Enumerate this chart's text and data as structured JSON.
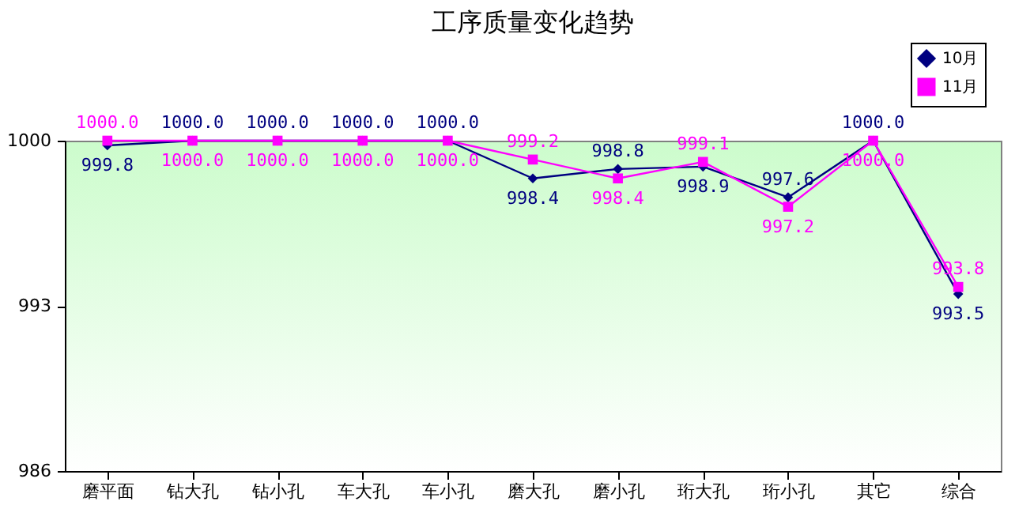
{
  "chart_data": {
    "type": "line",
    "title": "工序质量变化趋势",
    "categories": [
      "磨平面",
      "钻大孔",
      "钻小孔",
      "车大孔",
      "车小孔",
      "磨大孔",
      "磨小孔",
      "珩大孔",
      "珩小孔",
      "其它",
      "综合"
    ],
    "series": [
      {
        "name": "10月",
        "color": "#000080",
        "marker": "diamond",
        "values": [
          999.8,
          1000.0,
          1000.0,
          1000.0,
          1000.0,
          998.4,
          998.8,
          998.9,
          997.6,
          1000.0,
          993.5
        ],
        "value_labels": [
          "999.8",
          "1000.0",
          "1000.0",
          "1000.0",
          "1000.0",
          "998.4",
          "998.8",
          "998.9",
          "997.6",
          "1000.0",
          "993.5"
        ]
      },
      {
        "name": "11月",
        "color": "#ff00ff",
        "marker": "square",
        "values": [
          1000.0,
          1000.0,
          1000.0,
          1000.0,
          1000.0,
          999.2,
          998.4,
          999.1,
          997.2,
          1000.0,
          993.8
        ],
        "value_labels": [
          "1000.0",
          "1000.0",
          "1000.0",
          "1000.0",
          "1000.0",
          "999.2",
          "998.4",
          "999.1",
          "997.2",
          "1000.0",
          "993.8"
        ]
      }
    ],
    "ylim": [
      986,
      1000
    ],
    "yticks": [
      986,
      993,
      1000
    ],
    "grid": false,
    "legend": "top right"
  }
}
